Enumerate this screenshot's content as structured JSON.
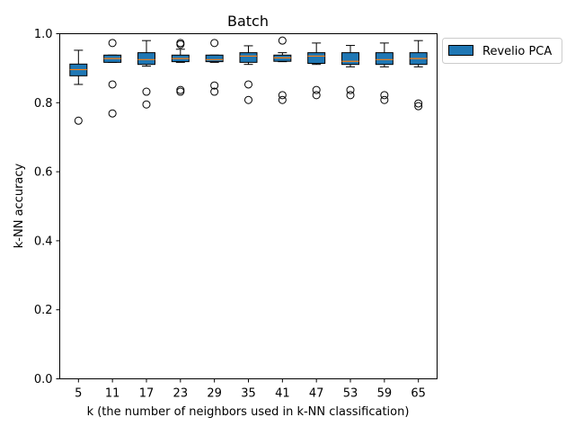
{
  "chart_data": {
    "type": "box",
    "title": "Batch",
    "xlabel": "k (the number of neighbors used in k-NN classification)",
    "ylabel": "k-NN accuracy",
    "ylim": [
      0.0,
      1.0
    ],
    "yticks": [
      "0.0",
      "0.2",
      "0.4",
      "0.6",
      "0.8",
      "1.0"
    ],
    "categories": [
      "5",
      "11",
      "17",
      "23",
      "29",
      "35",
      "41",
      "47",
      "53",
      "59",
      "65"
    ],
    "legend": {
      "position": "outside-top-right",
      "entries": [
        "Revelio PCA"
      ]
    },
    "colors": {
      "box_fill": "#1f77b4",
      "median": "#ff7f0e",
      "edge": "#000000"
    },
    "grid": false,
    "series": [
      {
        "name": "Revelio PCA",
        "boxes": [
          {
            "k": "5",
            "whislo": 0.853,
            "q1": 0.878,
            "med": 0.896,
            "q3": 0.912,
            "whishi": 0.952,
            "fliers": [
              0.748
            ]
          },
          {
            "k": "11",
            "whislo": 0.917,
            "q1": 0.917,
            "med": 0.928,
            "q3": 0.938,
            "whishi": 0.938,
            "fliers": [
              0.973,
              0.853,
              0.769
            ]
          },
          {
            "k": "17",
            "whislo": 0.906,
            "q1": 0.911,
            "med": 0.925,
            "q3": 0.945,
            "whishi": 0.98,
            "fliers": [
              0.832,
              0.795
            ]
          },
          {
            "k": "23",
            "whislo": 0.917,
            "q1": 0.919,
            "med": 0.928,
            "q3": 0.938,
            "whishi": 0.955,
            "fliers": [
              0.973,
              0.969,
              0.837,
              0.832
            ]
          },
          {
            "k": "29",
            "whislo": 0.917,
            "q1": 0.919,
            "med": 0.925,
            "q3": 0.938,
            "whishi": 0.938,
            "fliers": [
              0.973,
              0.85,
              0.832
            ]
          },
          {
            "k": "35",
            "whislo": 0.911,
            "q1": 0.917,
            "med": 0.935,
            "q3": 0.945,
            "whishi": 0.965,
            "fliers": [
              0.853,
              0.808
            ]
          },
          {
            "k": "41",
            "whislo": 0.919,
            "q1": 0.92,
            "med": 0.93,
            "q3": 0.938,
            "whishi": 0.945,
            "fliers": [
              0.98,
              0.822,
              0.808
            ]
          },
          {
            "k": "47",
            "whislo": 0.911,
            "q1": 0.914,
            "med": 0.935,
            "q3": 0.945,
            "whishi": 0.973,
            "fliers": [
              0.837,
              0.822
            ]
          },
          {
            "k": "53",
            "whislo": 0.904,
            "q1": 0.911,
            "med": 0.92,
            "q3": 0.945,
            "whishi": 0.966,
            "fliers": [
              0.837,
              0.822
            ]
          },
          {
            "k": "59",
            "whislo": 0.904,
            "q1": 0.911,
            "med": 0.925,
            "q3": 0.945,
            "whishi": 0.973,
            "fliers": [
              0.822,
              0.808
            ]
          },
          {
            "k": "65",
            "whislo": 0.904,
            "q1": 0.911,
            "med": 0.928,
            "q3": 0.945,
            "whishi": 0.98,
            "fliers": [
              0.798,
              0.79
            ]
          }
        ]
      }
    ]
  }
}
